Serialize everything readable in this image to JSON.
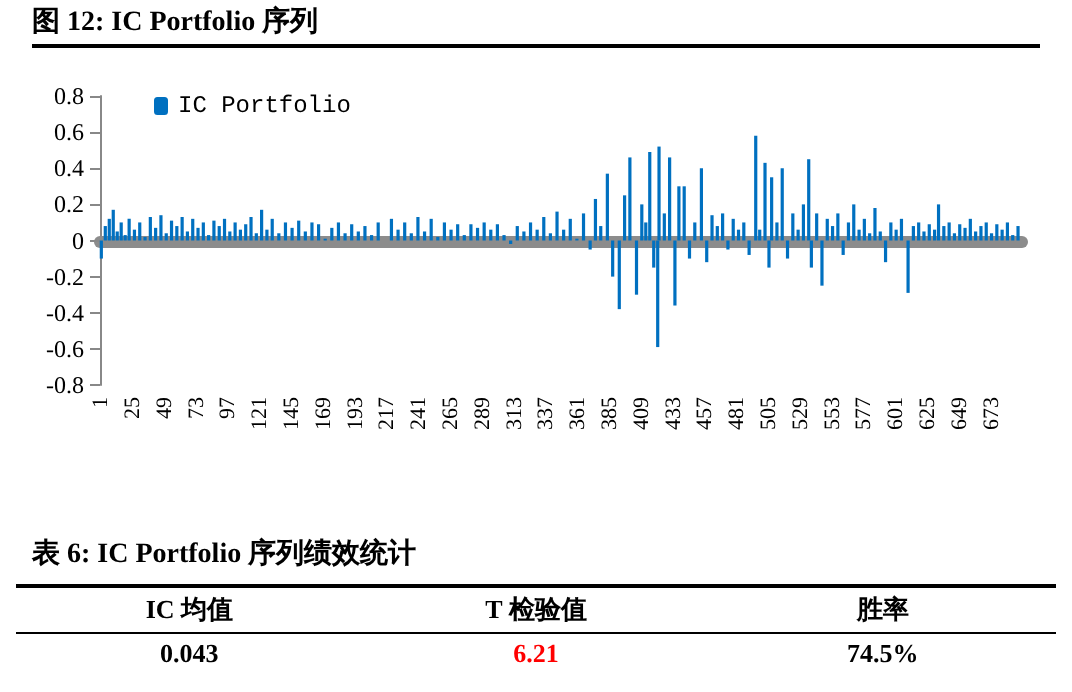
{
  "chart_data": [
    {
      "type": "bar",
      "title": "图 12: IC Portfolio 序列",
      "xlim": [
        0,
        696
      ],
      "xticks": [
        1,
        25,
        49,
        73,
        97,
        121,
        145,
        169,
        193,
        217,
        241,
        265,
        289,
        313,
        337,
        361,
        385,
        409,
        433,
        457,
        481,
        505,
        529,
        553,
        577,
        601,
        625,
        649,
        673
      ],
      "ylim": [
        -0.8,
        0.8
      ],
      "yticks": [
        -0.8,
        -0.6,
        -0.4,
        -0.2,
        0,
        0.2,
        0.4,
        0.6,
        0.8
      ],
      "legend": "top left",
      "series": [
        {
          "name": "IC Portfolio",
          "color": "#0070c0",
          "x": [
            1,
            4,
            7,
            10,
            13,
            16,
            19,
            22,
            26,
            30,
            34,
            38,
            42,
            46,
            50,
            54,
            58,
            62,
            66,
            70,
            74,
            78,
            82,
            86,
            90,
            94,
            98,
            102,
            106,
            110,
            114,
            118,
            122,
            126,
            130,
            135,
            140,
            145,
            150,
            155,
            160,
            165,
            170,
            175,
            180,
            185,
            190,
            195,
            200,
            205,
            210,
            215,
            220,
            225,
            230,
            235,
            240,
            245,
            250,
            255,
            260,
            265,
            270,
            275,
            280,
            285,
            290,
            295,
            300,
            305,
            310,
            315,
            320,
            325,
            330,
            335,
            340,
            345,
            350,
            355,
            360,
            365,
            370,
            374,
            378,
            383,
            387,
            392,
            396,
            400,
            405,
            409,
            412,
            415,
            418,
            421,
            422,
            426,
            430,
            434,
            437,
            441,
            445,
            449,
            454,
            458,
            462,
            466,
            470,
            474,
            478,
            482,
            486,
            490,
            495,
            498,
            502,
            505,
            507,
            511,
            515,
            519,
            523,
            527,
            531,
            535,
            537,
            541,
            545,
            549,
            553,
            557,
            561,
            565,
            569,
            573,
            577,
            581,
            585,
            589,
            593,
            597,
            601,
            605,
            610,
            614,
            618,
            622,
            626,
            630,
            633,
            637,
            641,
            645,
            649,
            653,
            657,
            661,
            665,
            669,
            673,
            677,
            681,
            685,
            689,
            693
          ],
          "values": [
            -0.1,
            0.08,
            0.12,
            0.17,
            0.05,
            0.1,
            0.03,
            0.12,
            0.06,
            0.1,
            0.02,
            0.13,
            0.07,
            0.14,
            0.04,
            0.11,
            0.08,
            0.13,
            0.05,
            0.12,
            0.07,
            0.1,
            0.03,
            0.11,
            0.08,
            0.12,
            0.05,
            0.1,
            0.06,
            0.09,
            0.13,
            0.04,
            0.17,
            0.06,
            0.12,
            0.04,
            0.1,
            0.07,
            0.11,
            0.05,
            0.1,
            0.09,
            0.01,
            0.07,
            0.1,
            0.04,
            0.09,
            0.05,
            0.08,
            0.03,
            0.1,
            null,
            0.12,
            0.06,
            0.1,
            0.04,
            0.13,
            0.05,
            0.12,
            0.02,
            0.1,
            0.06,
            0.09,
            0.03,
            0.09,
            0.07,
            0.1,
            0.06,
            0.09,
            0.03,
            -0.02,
            0.08,
            0.05,
            0.1,
            0.06,
            0.13,
            0.04,
            0.16,
            0.06,
            0.12,
            0.01,
            0.15,
            -0.05,
            0.23,
            0.08,
            0.37,
            -0.2,
            -0.38,
            0.25,
            0.46,
            -0.3,
            0.2,
            0.1,
            0.49,
            -0.15,
            -0.59,
            0.52,
            0.15,
            0.46,
            -0.36,
            0.3,
            0.3,
            -0.1,
            0.1,
            0.4,
            -0.12,
            0.14,
            0.08,
            0.15,
            -0.05,
            0.12,
            0.06,
            0.1,
            -0.08,
            0.58,
            0.06,
            0.43,
            -0.15,
            0.35,
            0.1,
            0.4,
            -0.1,
            0.15,
            0.06,
            0.2,
            0.45,
            -0.15,
            0.15,
            -0.25,
            0.12,
            0.08,
            0.15,
            -0.08,
            0.1,
            0.2,
            0.06,
            0.12,
            0.04,
            0.18,
            0.05,
            -0.12,
            0.1,
            0.06,
            0.12,
            -0.29,
            0.08,
            0.1,
            0.05,
            0.09,
            0.06,
            0.2,
            0.08,
            0.1,
            0.04,
            0.09,
            0.07,
            0.12,
            0.05,
            0.08,
            0.1,
            0.04,
            0.09,
            0.06,
            0.1,
            0.03,
            0.08
          ]
        }
      ]
    },
    {
      "type": "other",
      "title": "表 6: IC Portfolio 序列绩效统计",
      "categories": [
        "IC 均值",
        "T 检验值",
        "胜率"
      ],
      "value_labels": [
        "0.043",
        "6.21",
        "74.5%"
      ],
      "colors": [
        "#000000",
        "#ff0000",
        "#000000"
      ]
    }
  ]
}
